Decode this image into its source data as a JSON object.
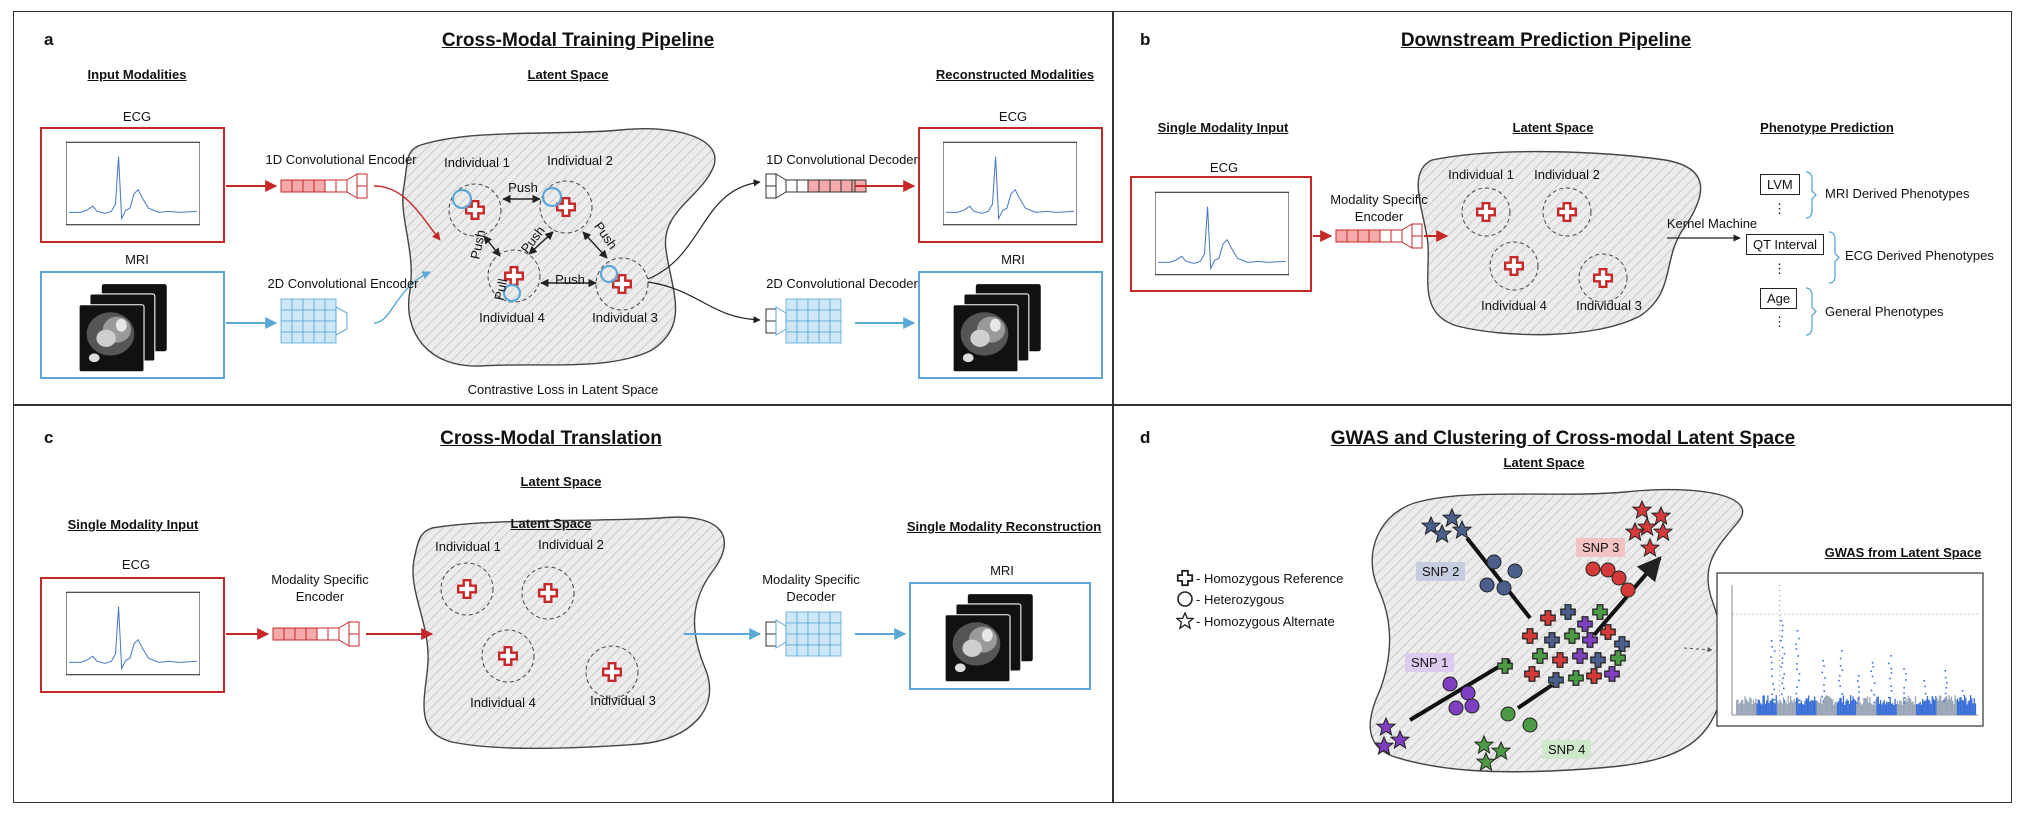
{
  "panel_a": {
    "letter": "a",
    "title": "Cross-Modal Training Pipeline",
    "input_modalities": "Input Modalities",
    "latent_space": "Latent Space",
    "reconstructed_modalities": "Reconstructed Modalities",
    "ecg": "ECG",
    "mri": "MRI",
    "encoder_1d": "1D Convolutional Encoder",
    "encoder_2d": "2D Convolutional Encoder",
    "decoder_1d": "1D Convolutional Decoder",
    "decoder_2d": "2D Convolutional Decoder",
    "individual_1": "Individual 1",
    "individual_2": "Individual 2",
    "individual_3": "Individual 3",
    "individual_4": "Individual 4",
    "push": "Push",
    "pull": "Pull",
    "contrastive_loss": "Contrastive Loss in Latent Space"
  },
  "panel_b": {
    "letter": "b",
    "title": "Downstream Prediction Pipeline",
    "single_modality_input": "Single Modality Input",
    "latent_space": "Latent Space",
    "phenotype_prediction": "Phenotype Prediction",
    "ecg": "ECG",
    "encoder_line1": "Modality Specific",
    "encoder_line2": "Encoder",
    "individual_1": "Individual 1",
    "individual_2": "Individual 2",
    "individual_3": "Individual 3",
    "individual_4": "Individual 4",
    "kernel_machine": "Kernel Machine",
    "lvm": "LVM",
    "qt_interval": "QT Interval",
    "age": "Age",
    "ellipsis": "⋮",
    "mri_derived": "MRI Derived Phenotypes",
    "ecg_derived": "ECG Derived Phenotypes",
    "general": "General Phenotypes"
  },
  "panel_c": {
    "letter": "c",
    "title": "Cross-Modal Translation",
    "latent_space": "Latent Space",
    "single_modality_input": "Single Modality Input",
    "single_modality_reconstruction": "Single Modality Reconstruction",
    "ecg": "ECG",
    "mri": "MRI",
    "encoder_line1": "Modality Specific",
    "encoder_line2": "Encoder",
    "decoder_line1": "Modality Specific",
    "decoder_line2": "Decoder",
    "individual_1": "Individual 1",
    "individual_2": "Individual 2",
    "individual_3": "Individual 3",
    "individual_4": "Individual 4"
  },
  "panel_d": {
    "letter": "d",
    "title": "GWAS and Clustering of Cross-modal Latent Space",
    "latent_space": "Latent Space",
    "legend_ref": "- Homozygous Reference",
    "legend_het": "- Heterozygous",
    "legend_alt": "- Homozygous Alternate",
    "snp1": "SNP 1",
    "snp2": "SNP 2",
    "snp3": "SNP 3",
    "snp4": "SNP 4",
    "gwas_title": "GWAS from Latent Space"
  },
  "colors": {
    "ecg_red": "#c62828",
    "mri_blue": "#5ba7d6",
    "snp1": "#7e3fc0",
    "snp2": "#4a5f8c",
    "snp3": "#d43a3a",
    "snp4": "#4c9a44",
    "gwas_points": "#3a6fd8"
  }
}
